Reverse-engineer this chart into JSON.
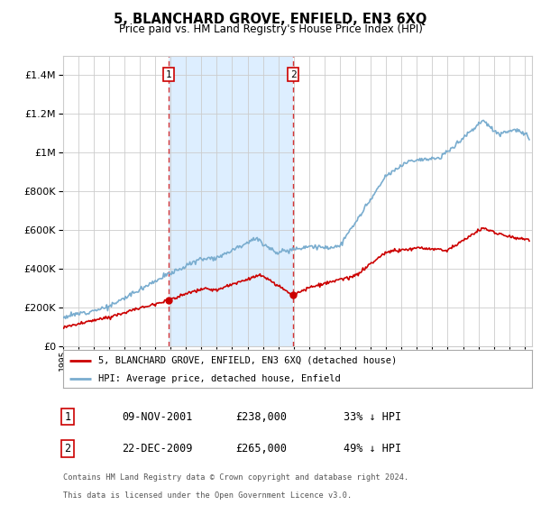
{
  "title": "5, BLANCHARD GROVE, ENFIELD, EN3 6XQ",
  "subtitle": "Price paid vs. HM Land Registry's House Price Index (HPI)",
  "legend_label_red": "5, BLANCHARD GROVE, ENFIELD, EN3 6XQ (detached house)",
  "legend_label_blue": "HPI: Average price, detached house, Enfield",
  "transaction1_date": "09-NOV-2001",
  "transaction1_price": "£238,000",
  "transaction1_hpi": "33% ↓ HPI",
  "transaction1_year": 2001.86,
  "transaction1_value": 238000,
  "transaction2_date": "22-DEC-2009",
  "transaction2_price": "£265,000",
  "transaction2_hpi": "49% ↓ HPI",
  "transaction2_year": 2009.97,
  "transaction2_value": 265000,
  "footer_line1": "Contains HM Land Registry data © Crown copyright and database right 2024.",
  "footer_line2": "This data is licensed under the Open Government Licence v3.0.",
  "shade_x1": 2001.86,
  "shade_x2": 2009.97,
  "ylim": [
    0,
    1500000
  ],
  "xlim_start": 1995.0,
  "xlim_end": 2025.5,
  "red_color": "#cc0000",
  "blue_color": "#7aadcf",
  "shade_color": "#ddeeff",
  "grid_color": "#cccccc",
  "background_color": "#ffffff"
}
